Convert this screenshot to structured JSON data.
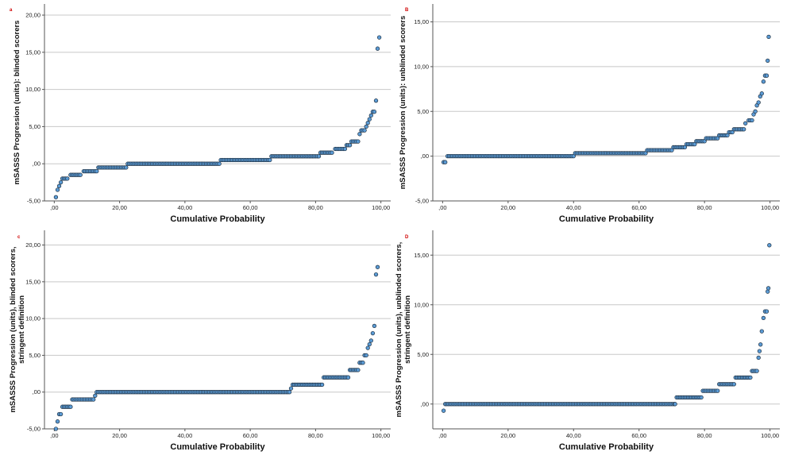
{
  "chart_data": [
    {
      "type": "scatter",
      "panel_label": "a",
      "xlabel": "Cumulative Probability",
      "ylabel": [
        "mSASSS Progression (units): blinded scorers"
      ],
      "xlim": [
        -3,
        103
      ],
      "ylim": [
        -5,
        21.5
      ],
      "xticks": [
        0,
        20,
        40,
        60,
        80,
        100
      ],
      "xtick_labels": [
        ",00",
        "20,00",
        "40,00",
        "60,00",
        "80,00",
        "100,00"
      ],
      "yticks": [
        -5,
        0,
        5,
        10,
        15,
        20
      ],
      "ytick_labels": [
        "-5,00",
        ",00",
        "5,00",
        "10,00",
        "15,00",
        "20,00"
      ],
      "grid": true,
      "steps": [
        [
          0.5,
          -4.5
        ],
        [
          1,
          -3.5
        ],
        [
          1.5,
          -3
        ],
        [
          2,
          -2.5
        ],
        [
          2.5,
          -2
        ],
        [
          4,
          -2
        ],
        [
          5,
          -1.5
        ],
        [
          8,
          -1.5
        ],
        [
          9,
          -1
        ],
        [
          13,
          -1
        ],
        [
          13.5,
          -0.5
        ],
        [
          22,
          -0.5
        ],
        [
          22.5,
          0
        ],
        [
          50.5,
          0
        ],
        [
          51,
          0.5
        ],
        [
          66,
          0.5
        ],
        [
          66.5,
          1
        ],
        [
          81,
          1
        ],
        [
          81.5,
          1.5
        ],
        [
          85,
          1.5
        ],
        [
          86,
          2
        ],
        [
          89,
          2
        ],
        [
          89.5,
          2.5
        ],
        [
          90.5,
          2.5
        ],
        [
          91,
          3
        ],
        [
          93,
          3
        ],
        [
          93.5,
          4
        ],
        [
          94,
          4.5
        ],
        [
          95,
          4.5
        ],
        [
          95.5,
          5
        ],
        [
          96,
          5.5
        ],
        [
          96.5,
          6
        ],
        [
          97,
          6.5
        ],
        [
          97.5,
          7
        ],
        [
          98,
          7
        ],
        [
          98.5,
          8.5
        ],
        [
          99,
          15.5
        ],
        [
          99.5,
          17
        ]
      ]
    },
    {
      "type": "scatter",
      "panel_label": "B",
      "xlabel": "Cumulative Probability",
      "ylabel": [
        "mSASSS Progression (units): unblinded scorers"
      ],
      "xlim": [
        -3,
        103
      ],
      "ylim": [
        -5,
        17
      ],
      "xticks": [
        0,
        20,
        40,
        60,
        80,
        100
      ],
      "xtick_labels": [
        ",00",
        "20,00",
        "40,00",
        "60,00",
        "80,00",
        "100,00"
      ],
      "yticks": [
        -5,
        0,
        5,
        10,
        15
      ],
      "ytick_labels": [
        "-5,00",
        ",00",
        "5,00",
        "10,00",
        "15,00"
      ],
      "grid": true,
      "steps": [
        [
          0.3,
          -0.67
        ],
        [
          0.8,
          -0.67
        ],
        [
          1.5,
          0
        ],
        [
          40,
          0
        ],
        [
          40.5,
          0.33
        ],
        [
          62,
          0.33
        ],
        [
          62.5,
          0.67
        ],
        [
          70,
          0.67
        ],
        [
          70.5,
          1
        ],
        [
          74,
          1
        ],
        [
          74.5,
          1.33
        ],
        [
          77,
          1.33
        ],
        [
          77.5,
          1.67
        ],
        [
          80,
          1.67
        ],
        [
          80.5,
          2
        ],
        [
          84,
          2
        ],
        [
          84.5,
          2.33
        ],
        [
          87,
          2.33
        ],
        [
          87.5,
          2.67
        ],
        [
          88.5,
          2.67
        ],
        [
          89,
          3
        ],
        [
          92,
          3
        ],
        [
          92.5,
          3.67
        ],
        [
          93.5,
          4
        ],
        [
          94.5,
          4
        ],
        [
          95,
          4.67
        ],
        [
          95.5,
          5
        ],
        [
          96,
          5.67
        ],
        [
          96.5,
          6
        ],
        [
          97,
          6.67
        ],
        [
          97.5,
          7
        ],
        [
          98,
          8.33
        ],
        [
          98.5,
          9
        ],
        [
          99,
          9
        ],
        [
          99.3,
          10.67
        ],
        [
          99.6,
          13.33
        ]
      ]
    },
    {
      "type": "scatter",
      "panel_label": "c",
      "xlabel": "Cumulative Probability",
      "ylabel": [
        "mSASSS Progression (units), blinded scorers,",
        "stringent definition"
      ],
      "xlim": [
        -3,
        103
      ],
      "ylim": [
        -5,
        22
      ],
      "xticks": [
        0,
        20,
        40,
        60,
        80,
        100
      ],
      "xtick_labels": [
        ",00",
        "20,00",
        "40,00",
        "60,00",
        "80,00",
        "100,00"
      ],
      "yticks": [
        -5,
        0,
        5,
        10,
        15,
        20
      ],
      "ytick_labels": [
        "-5,00",
        ",00",
        "5,00",
        "10,00",
        "15,00",
        "20,00"
      ],
      "grid": true,
      "steps": [
        [
          0.5,
          -5
        ],
        [
          1,
          -4
        ],
        [
          1.5,
          -3
        ],
        [
          2,
          -3
        ],
        [
          2.5,
          -2
        ],
        [
          5,
          -2
        ],
        [
          5.5,
          -1
        ],
        [
          12,
          -1
        ],
        [
          12.5,
          -0.5
        ],
        [
          13,
          0
        ],
        [
          72,
          0
        ],
        [
          72.5,
          0.5
        ],
        [
          73,
          1
        ],
        [
          82,
          1
        ],
        [
          82.5,
          2
        ],
        [
          90,
          2
        ],
        [
          90.5,
          3
        ],
        [
          93,
          3
        ],
        [
          93.5,
          4
        ],
        [
          94.5,
          4
        ],
        [
          95,
          5
        ],
        [
          95.5,
          5
        ],
        [
          96,
          6
        ],
        [
          96.5,
          6.5
        ],
        [
          97,
          7
        ],
        [
          97.5,
          8
        ],
        [
          98,
          9
        ],
        [
          98.5,
          16
        ],
        [
          99,
          17
        ]
      ]
    },
    {
      "type": "scatter",
      "panel_label": "D",
      "xlabel": "Cumulative Probability",
      "ylabel": [
        "mSASSS Progression (units), unblinded scorers,",
        "stringent definition"
      ],
      "xlim": [
        -3,
        103
      ],
      "ylim": [
        -2.5,
        17.5
      ],
      "xticks": [
        0,
        20,
        40,
        60,
        80,
        100
      ],
      "xtick_labels": [
        ",00",
        "20,00",
        "40,00",
        "60,00",
        "80,00",
        "100,00"
      ],
      "yticks": [
        0,
        5,
        10,
        15
      ],
      "ytick_labels": [
        ",00",
        "5,00",
        "10,00",
        "15,00"
      ],
      "grid": true,
      "steps": [
        [
          0.3,
          -0.67
        ],
        [
          0.8,
          0
        ],
        [
          71,
          0
        ],
        [
          71.5,
          0.67
        ],
        [
          79,
          0.67
        ],
        [
          79.5,
          1.33
        ],
        [
          84,
          1.33
        ],
        [
          84.5,
          2
        ],
        [
          89,
          2
        ],
        [
          89.5,
          2.67
        ],
        [
          94,
          2.67
        ],
        [
          94.5,
          3.33
        ],
        [
          96,
          3.33
        ],
        [
          96.5,
          4.67
        ],
        [
          96.8,
          5.33
        ],
        [
          97.1,
          6
        ],
        [
          97.5,
          7.33
        ],
        [
          98,
          8.67
        ],
        [
          98.5,
          9.33
        ],
        [
          99,
          9.33
        ],
        [
          99.3,
          11.33
        ],
        [
          99.5,
          11.67
        ],
        [
          99.8,
          16
        ]
      ]
    }
  ]
}
